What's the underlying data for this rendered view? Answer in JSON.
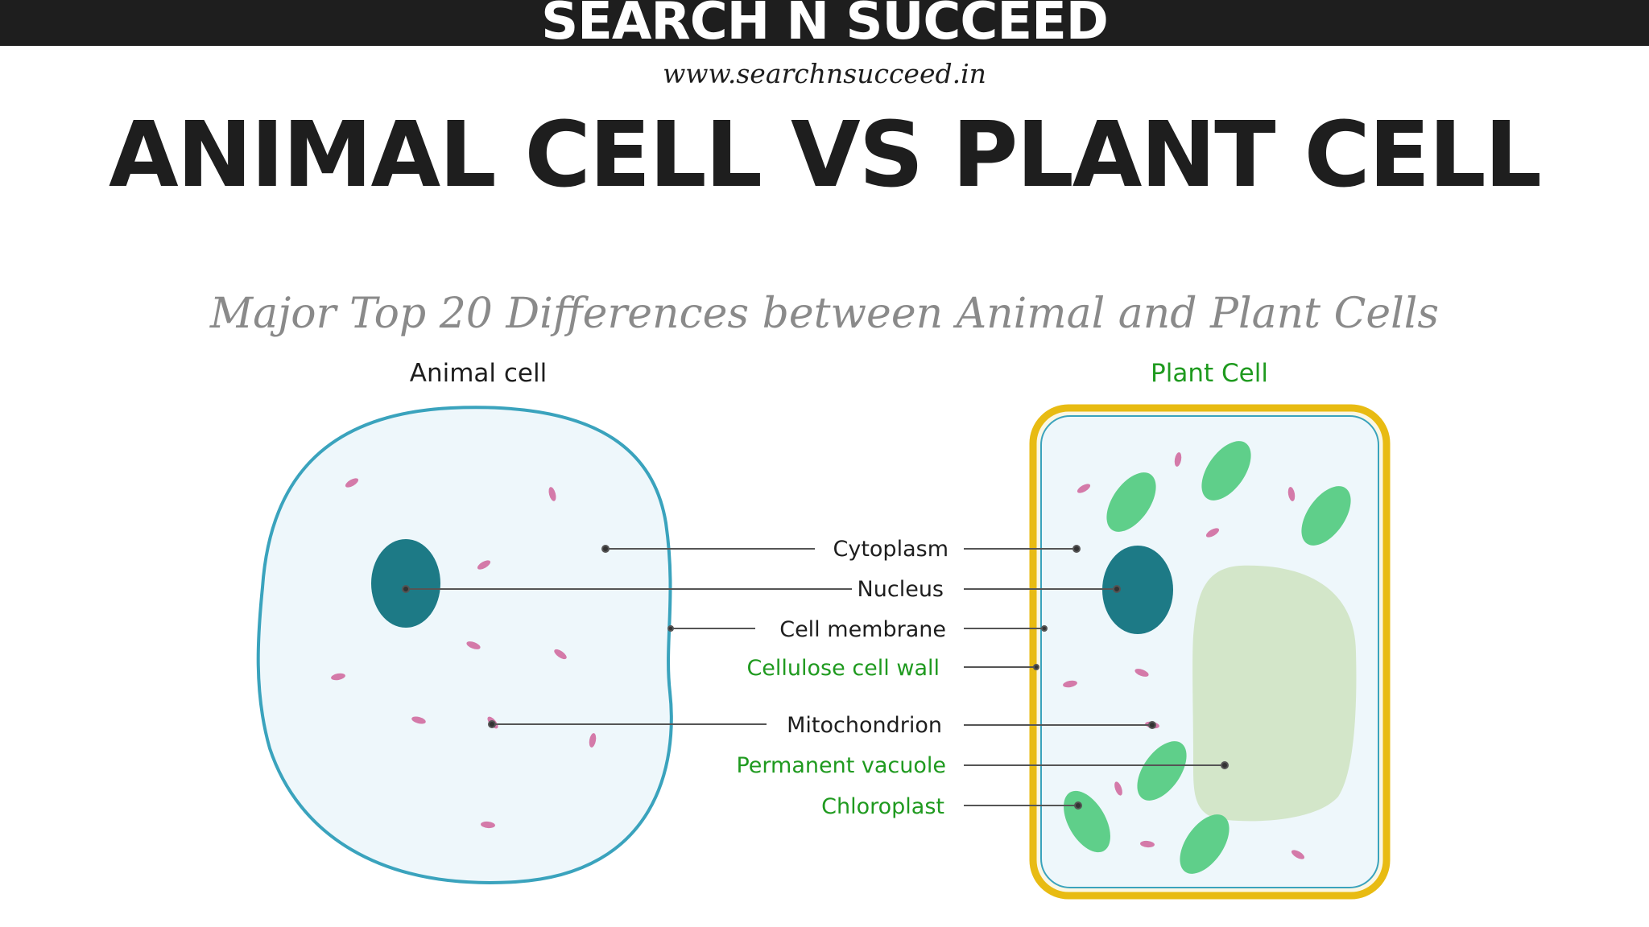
{
  "header": {
    "brand": "SEARCH N SUCCEED",
    "url": "www.searchnsucceed.in"
  },
  "title": "ANIMAL CELL VS PLANT CELL",
  "subtitle": "Major Top 20 Differences between Animal and Plant Cells",
  "diagram": {
    "animal_caption": "Animal cell",
    "plant_caption": "Plant Cell",
    "labels": {
      "cytoplasm": "Cytoplasm",
      "nucleus": "Nucleus",
      "cell_membrane": "Cell membrane",
      "cellulose_cell_wall": "Cellulose cell wall",
      "mitochondrion": "Mitochondrion",
      "permanent_vacuole": "Permanent vacuole",
      "chloroplast": "Chloroplast"
    },
    "colors": {
      "dark_text": "#1e1e1e",
      "green_label": "#1f9a1f",
      "membrane": "#3aa3bd",
      "cytoplasm_fill": "#eef7fb",
      "nucleus": "#1d7a86",
      "cell_wall": "#e8bb12",
      "chloroplast": "#5fcf8a",
      "vacuole": "#d3e6c9",
      "mitochondria": "#d47aa9"
    }
  }
}
